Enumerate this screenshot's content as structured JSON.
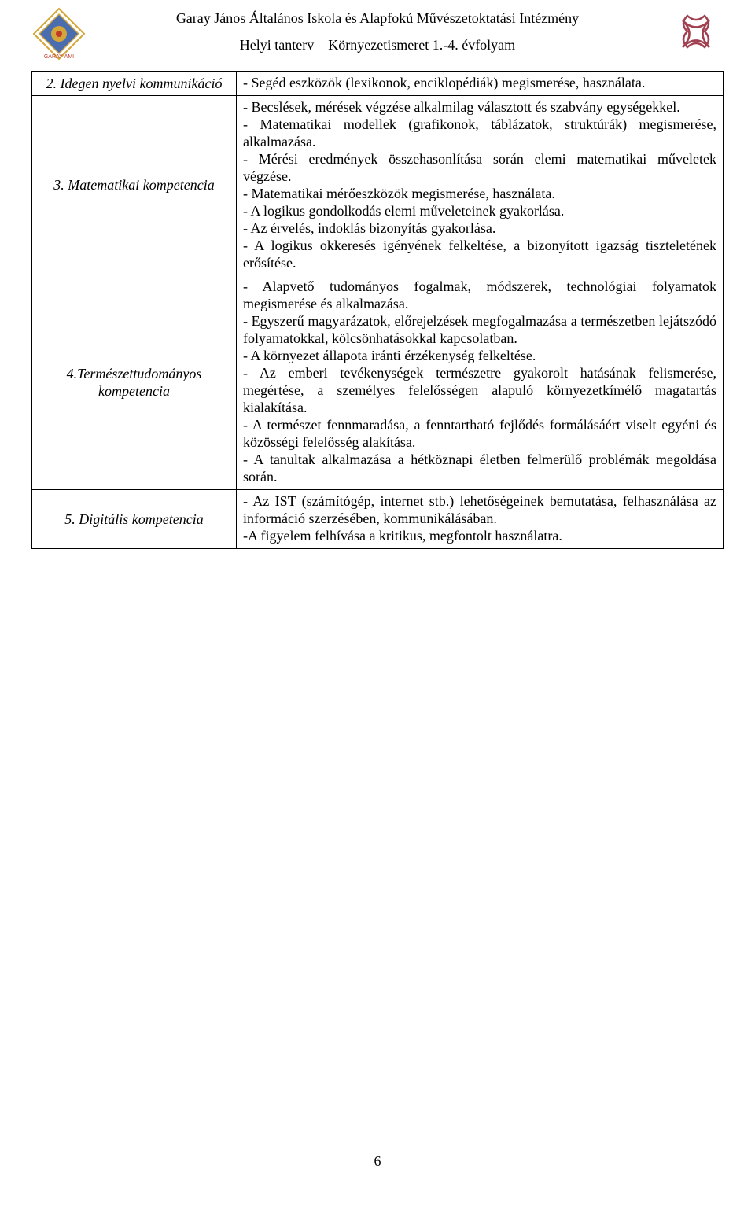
{
  "header": {
    "school_name": "Garay János Általános Iskola és Alapfokú Művészetoktatási Intézmény",
    "subtitle": "Helyi tanterv – Környezetismeret 1.-4. évfolyam"
  },
  "rows": [
    {
      "label": "2. Idegen nyelvi kommunikáció",
      "content": "- Segéd eszközök (lexikonok, enciklopédiák) megismerése, használata."
    },
    {
      "label": "3. Matematikai kompetencia",
      "content": "- Becslések, mérések végzése alkalmilag választott és szabvány egységekkel.\n- Matematikai modellek (grafikonok, táblázatok, struktúrák) megismerése, alkalmazása.\n- Mérési eredmények összehasonlítása során elemi matematikai műveletek végzése.\n- Matematikai mérőeszközök megismerése, használata.\n- A logikus gondolkodás elemi műveleteinek gyakorlása.\n- Az érvelés, indoklás bizonyítás gyakorlása.\n- A logikus okkeresés igényének felkeltése, a bizonyított igazság tiszteletének erősítése."
    },
    {
      "label": "4.Természettudományos kompetencia",
      "content": "- Alapvető tudományos fogalmak, módszerek, technológiai folyamatok megismerése és alkalmazása.\n- Egyszerű magyarázatok, előrejelzések megfogalmazása a természetben lejátszódó folyamatokkal, kölcsönhatásokkal kapcsolatban.\n- A környezet állapota iránti érzékenység felkeltése.\n- Az emberi tevékenységek természetre gyakorolt hatásának felismerése, megértése, a személyes felelősségen alapuló környezetkímélő magatartás kialakítása.\n- A természet fennmaradása, a fenntartható fejlődés formálásáért viselt egyéni és közösségi felelősség alakítása.\n- A tanultak alkalmazása a hétköznapi életben felmerülő problémák megoldása során."
    },
    {
      "label": "5. Digitális kompetencia",
      "content": "- Az IST (számítógép, internet stb.) lehetőségeinek bemutatása, felhasználása az információ szerzésében, kommunikálásában.\n-A figyelem felhívása a kritikus, megfontolt használatra."
    }
  ],
  "page_number": "6",
  "colors": {
    "text": "#000000",
    "background": "#ffffff",
    "border": "#000000",
    "logo_left_gold": "#d4a63a",
    "logo_left_blue": "#4a6db0",
    "logo_left_red": "#c0392b",
    "logo_right": "#a04050"
  }
}
